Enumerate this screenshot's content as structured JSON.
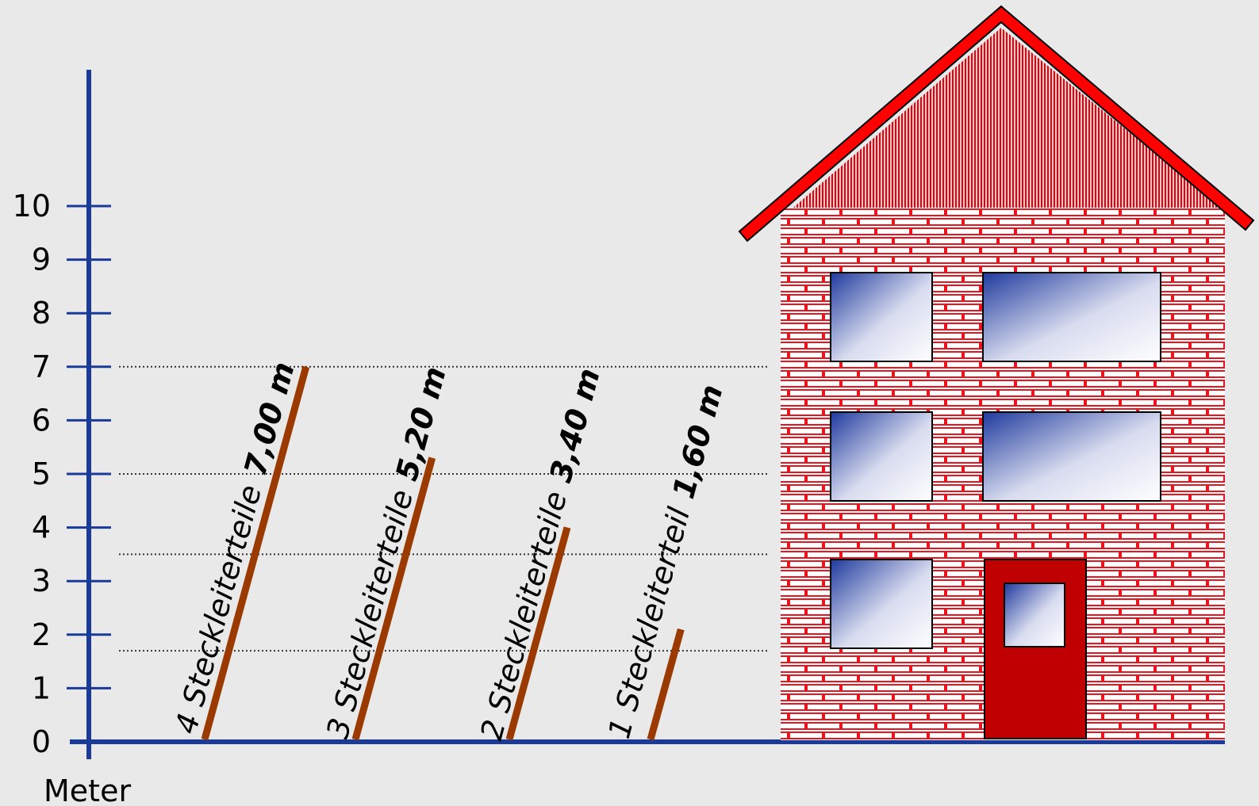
{
  "axis": {
    "unit_label": "Meter",
    "ticks": [
      "0",
      "1",
      "2",
      "3",
      "4",
      "5",
      "6",
      "7",
      "8",
      "9",
      "10"
    ],
    "ymin": 0,
    "ymax": 10
  },
  "reference_lines": [
    {
      "value": 7.0
    },
    {
      "value": 5.0
    },
    {
      "value": 3.5
    },
    {
      "value": 1.7
    }
  ],
  "ladders": [
    {
      "parts_text": "4 Steckleiterteile",
      "length_text": "7,00 m",
      "height": 7.0
    },
    {
      "parts_text": "3 Steckleiterteile",
      "length_text": "5,20 m",
      "height": 5.3
    },
    {
      "parts_text": "2 Steckleiterteile",
      "length_text": "3,40 m",
      "height": 4.0
    },
    {
      "parts_text": "1 Steckleiterteil",
      "length_text": "1,60 m",
      "height": 2.1
    }
  ],
  "colors": {
    "axis": "#1a3a99",
    "ladder": "#9a3a00",
    "roof": "#ff0000",
    "brick": "#e8141e",
    "door": "#c00000",
    "window_dark": "#1f3a9e"
  }
}
